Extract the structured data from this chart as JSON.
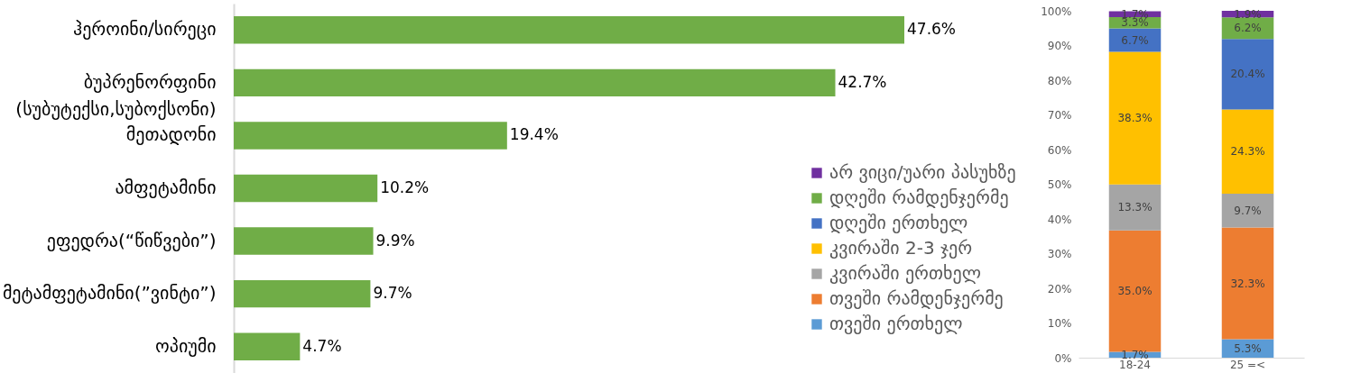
{
  "chart_data": [
    {
      "type": "bar",
      "orientation": "horizontal",
      "categories": [
        "ჰეროინი/სირეცი",
        "ბუპრენორფინი (სუბუტექსი,სუბოქსონი)",
        "მეთადონი",
        "ამფეტამინი",
        "ეფედრა(“წიწვები”)",
        "მეტამფეტამინი(”ვინტი”)",
        "ოპიუმი"
      ],
      "values": [
        47.6,
        42.7,
        19.4,
        10.2,
        9.9,
        9.7,
        4.7
      ],
      "value_labels": [
        "47.6%",
        "42.7%",
        "19.4%",
        "10.2%",
        "9.9%",
        "9.7%",
        "4.7%"
      ],
      "color": "#70ad47",
      "tick_labels": "y",
      "grid": false
    },
    {
      "type": "bar",
      "stacked": true,
      "categories": [
        "18-24",
        "25 =<"
      ],
      "series": [
        {
          "name": "თვეში ერთხელ",
          "color": "#5b9bd5",
          "values": [
            1.7,
            5.3
          ],
          "value_labels": [
            "1.7%",
            "5.3%"
          ]
        },
        {
          "name": "თვეში რამდენჯერმე",
          "color": "#ed7d31",
          "values": [
            35.0,
            32.3
          ],
          "value_labels": [
            "35.0%",
            "32.3%"
          ]
        },
        {
          "name": "კვირაში ერთხელ",
          "color": "#a5a5a5",
          "values": [
            13.3,
            9.7
          ],
          "value_labels": [
            "13.3%",
            "9.7%"
          ]
        },
        {
          "name": "კვირაში 2-3 ჯერ",
          "color": "#ffc000",
          "values": [
            38.3,
            24.3
          ],
          "value_labels": [
            "38.3%",
            "24.3%"
          ]
        },
        {
          "name": "დღეში ერთხელ",
          "color": "#4472c4",
          "values": [
            6.7,
            20.4
          ],
          "value_labels": [
            "6.7%",
            "20.4%"
          ]
        },
        {
          "name": "დღეში რამდენჯერმე",
          "color": "#70ad47",
          "values": [
            3.3,
            6.2
          ],
          "value_labels": [
            "3.3%",
            "6.2%"
          ]
        },
        {
          "name": "არ ვიცი/უარი პასუხზე",
          "color": "#7030a0",
          "values": [
            1.7,
            1.9
          ],
          "value_labels": [
            "1.7%",
            "1.9%"
          ]
        }
      ],
      "ylim": [
        0,
        100.1
      ],
      "yticks": [
        {
          "value": 0,
          "label": "0%"
        },
        {
          "value": 10,
          "label": "10%"
        },
        {
          "value": 20,
          "label": "20%"
        },
        {
          "value": 30,
          "label": "30%"
        },
        {
          "value": 40,
          "label": "40%"
        },
        {
          "value": 50,
          "label": "50%"
        },
        {
          "value": 60,
          "label": "60%"
        },
        {
          "value": 70,
          "label": "70%"
        },
        {
          "value": 80,
          "label": "80%"
        },
        {
          "value": 90,
          "label": "90%"
        },
        {
          "value": 100,
          "label": "100%"
        }
      ],
      "grid": false,
      "legend": "left"
    }
  ]
}
